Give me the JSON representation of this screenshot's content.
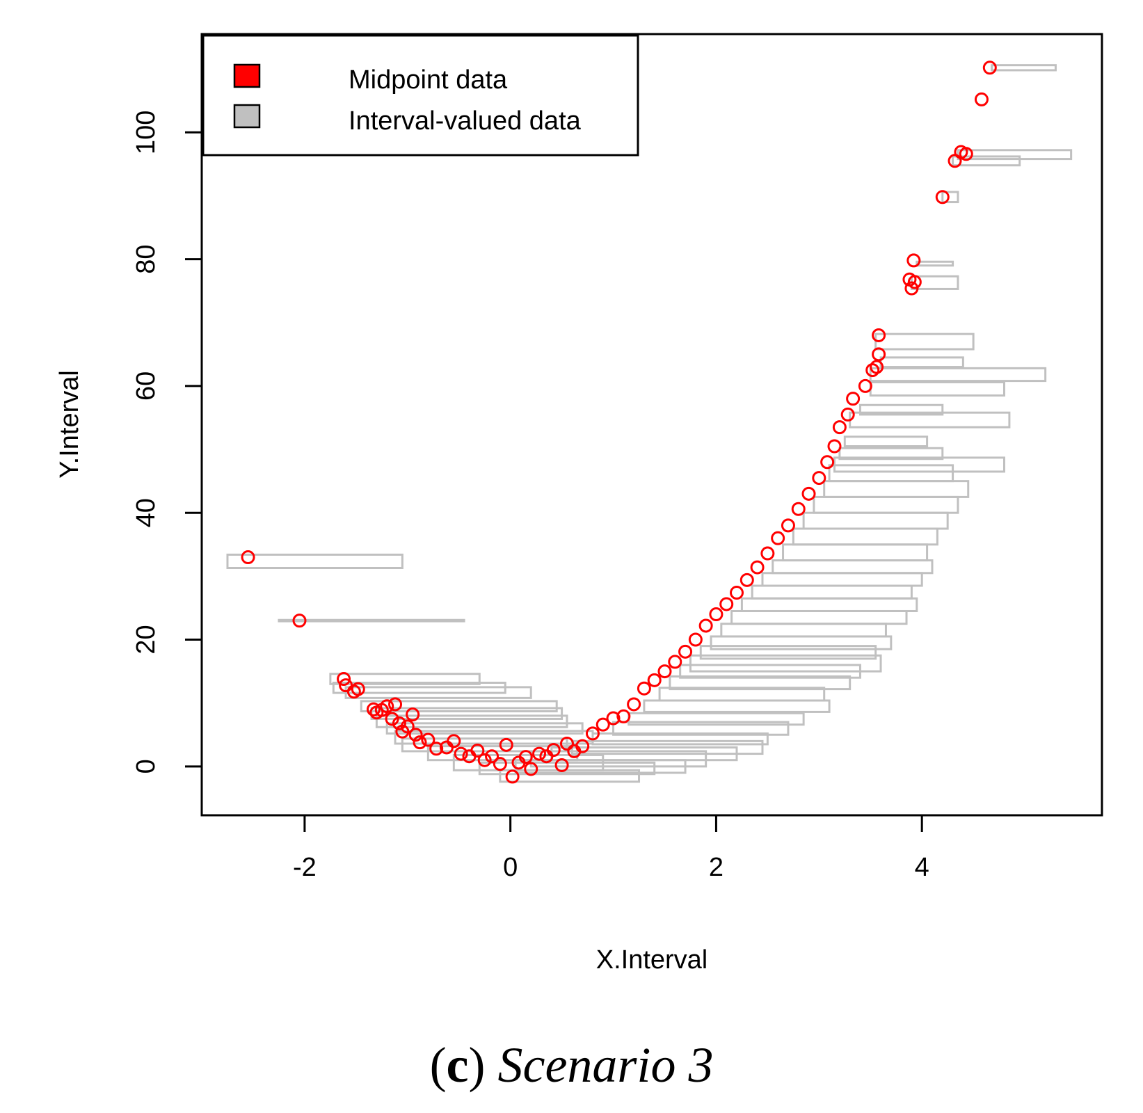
{
  "chart_data": {
    "type": "scatter",
    "title": "",
    "xlabel": "X.Interval",
    "ylabel": "Y.Interval",
    "xlim": [
      -3.0,
      5.75
    ],
    "ylim": [
      -7.7,
      115.5
    ],
    "x_ticks": [
      -2,
      0,
      2,
      4
    ],
    "y_ticks": [
      0,
      20,
      40,
      60,
      80,
      100
    ],
    "grid": false,
    "legend": {
      "position": "top-left",
      "entries": [
        {
          "label": "Midpoint data",
          "color": "#ff0000"
        },
        {
          "label": "Interval-valued data",
          "color": "#c0c0c0"
        }
      ]
    },
    "series": [
      {
        "name": "Midpoint data",
        "color": "#ff0000",
        "marker": "open-circle",
        "points": [
          [
            -2.55,
            33.0
          ],
          [
            -2.05,
            23.0
          ],
          [
            -1.62,
            13.8
          ],
          [
            -1.6,
            12.8
          ],
          [
            -1.52,
            11.8
          ],
          [
            -1.48,
            12.2
          ],
          [
            -1.33,
            9.0
          ],
          [
            -1.3,
            8.5
          ],
          [
            -1.25,
            8.9
          ],
          [
            -1.2,
            9.5
          ],
          [
            -1.15,
            7.5
          ],
          [
            -1.12,
            9.8
          ],
          [
            -1.08,
            6.8
          ],
          [
            -1.05,
            5.5
          ],
          [
            -1.0,
            6.3
          ],
          [
            -0.95,
            8.2
          ],
          [
            -0.92,
            5.0
          ],
          [
            -0.88,
            3.8
          ],
          [
            -0.8,
            4.2
          ],
          [
            -0.72,
            2.8
          ],
          [
            -0.62,
            3.0
          ],
          [
            -0.55,
            4.0
          ],
          [
            -0.48,
            2.0
          ],
          [
            -0.4,
            1.6
          ],
          [
            -0.32,
            2.5
          ],
          [
            -0.25,
            1.0
          ],
          [
            -0.18,
            1.6
          ],
          [
            -0.1,
            0.4
          ],
          [
            -0.04,
            3.4
          ],
          [
            0.02,
            -1.6
          ],
          [
            0.08,
            0.6
          ],
          [
            0.15,
            1.5
          ],
          [
            0.2,
            -0.4
          ],
          [
            0.28,
            2.0
          ],
          [
            0.35,
            1.6
          ],
          [
            0.42,
            2.6
          ],
          [
            0.5,
            0.2
          ],
          [
            0.55,
            3.6
          ],
          [
            0.62,
            2.4
          ],
          [
            0.7,
            3.2
          ],
          [
            0.8,
            5.2
          ],
          [
            0.9,
            6.6
          ],
          [
            1.0,
            7.6
          ],
          [
            1.1,
            7.9
          ],
          [
            1.2,
            9.8
          ],
          [
            1.3,
            12.3
          ],
          [
            1.4,
            13.6
          ],
          [
            1.5,
            15.0
          ],
          [
            1.6,
            16.5
          ],
          [
            1.7,
            18.1
          ],
          [
            1.8,
            20.0
          ],
          [
            1.9,
            22.2
          ],
          [
            2.0,
            24.0
          ],
          [
            2.1,
            25.6
          ],
          [
            2.2,
            27.4
          ],
          [
            2.3,
            29.4
          ],
          [
            2.4,
            31.4
          ],
          [
            2.5,
            33.6
          ],
          [
            2.6,
            36.0
          ],
          [
            2.7,
            38.0
          ],
          [
            2.8,
            40.6
          ],
          [
            2.9,
            43.0
          ],
          [
            3.0,
            45.5
          ],
          [
            3.08,
            48.0
          ],
          [
            3.15,
            50.5
          ],
          [
            3.2,
            53.5
          ],
          [
            3.28,
            55.5
          ],
          [
            3.33,
            58.0
          ],
          [
            3.45,
            60.0
          ],
          [
            3.52,
            62.5
          ],
          [
            3.56,
            63.0
          ],
          [
            3.58,
            65.0
          ],
          [
            3.58,
            68.0
          ],
          [
            3.88,
            76.8
          ],
          [
            3.9,
            75.4
          ],
          [
            3.92,
            79.8
          ],
          [
            3.93,
            76.4
          ],
          [
            4.2,
            89.8
          ],
          [
            4.32,
            95.5
          ],
          [
            4.38,
            96.9
          ],
          [
            4.43,
            96.6
          ],
          [
            4.58,
            105.2
          ],
          [
            4.66,
            110.2
          ]
        ]
      },
      {
        "name": "Interval-valued data",
        "color": "#c0c0c0",
        "marker": "rectangle",
        "intervals": [
          [
            -2.75,
            -1.05,
            31.3,
            33.4
          ],
          [
            -2.25,
            -0.45,
            22.9,
            23.1
          ],
          [
            -1.75,
            -0.3,
            13.0,
            14.6
          ],
          [
            -1.72,
            -0.05,
            11.6,
            13.2
          ],
          [
            -1.6,
            0.2,
            10.8,
            12.5
          ],
          [
            -1.45,
            0.45,
            8.7,
            10.3
          ],
          [
            -1.35,
            0.5,
            7.5,
            9.2
          ],
          [
            -1.3,
            0.55,
            6.2,
            8.0
          ],
          [
            -1.2,
            0.7,
            5.2,
            6.8
          ],
          [
            -1.12,
            0.8,
            3.6,
            5.6
          ],
          [
            -1.05,
            0.55,
            2.4,
            4.4
          ],
          [
            -0.8,
            0.65,
            1.0,
            3.2
          ],
          [
            -0.55,
            0.9,
            -0.6,
            1.8
          ],
          [
            -0.3,
            1.4,
            -1.2,
            0.6
          ],
          [
            -0.1,
            1.25,
            -2.4,
            -0.6
          ],
          [
            0.05,
            1.7,
            -1.0,
            1.0
          ],
          [
            0.2,
            1.9,
            0.0,
            2.4
          ],
          [
            0.4,
            2.2,
            1.0,
            3.0
          ],
          [
            0.6,
            2.45,
            2.0,
            4.0
          ],
          [
            0.8,
            2.5,
            3.5,
            5.2
          ],
          [
            1.0,
            2.7,
            5.0,
            7.0
          ],
          [
            1.15,
            2.85,
            6.6,
            8.4
          ],
          [
            1.3,
            3.1,
            8.6,
            10.4
          ],
          [
            1.45,
            3.05,
            10.4,
            12.4
          ],
          [
            1.55,
            3.3,
            12.2,
            14.2
          ],
          [
            1.65,
            3.4,
            14.0,
            16.0
          ],
          [
            1.75,
            3.6,
            15.0,
            17.5
          ],
          [
            1.85,
            3.55,
            17.0,
            19.0
          ],
          [
            1.95,
            3.7,
            18.5,
            20.5
          ],
          [
            2.05,
            3.65,
            20.5,
            22.5
          ],
          [
            2.15,
            3.85,
            22.5,
            24.5
          ],
          [
            2.25,
            3.95,
            24.5,
            26.5
          ],
          [
            2.35,
            3.9,
            26.5,
            28.5
          ],
          [
            2.45,
            4.0,
            28.5,
            30.5
          ],
          [
            2.55,
            4.1,
            30.5,
            32.5
          ],
          [
            2.65,
            4.05,
            32.5,
            35.0
          ],
          [
            2.75,
            4.15,
            35.0,
            37.5
          ],
          [
            2.85,
            4.25,
            37.5,
            40.0
          ],
          [
            2.95,
            4.35,
            40.0,
            42.5
          ],
          [
            3.05,
            4.45,
            42.5,
            45.0
          ],
          [
            3.1,
            4.3,
            45.0,
            47.5
          ],
          [
            3.15,
            4.8,
            46.5,
            48.7
          ],
          [
            3.2,
            4.2,
            48.5,
            50.2
          ],
          [
            3.25,
            4.05,
            50.5,
            52.0
          ],
          [
            3.3,
            4.85,
            53.5,
            55.8
          ],
          [
            3.4,
            4.2,
            55.5,
            57.0
          ],
          [
            3.5,
            4.8,
            58.5,
            60.6
          ],
          [
            3.5,
            5.2,
            60.8,
            62.8
          ],
          [
            3.6,
            4.4,
            63.0,
            64.5
          ],
          [
            3.55,
            4.5,
            65.8,
            68.2
          ],
          [
            3.9,
            4.35,
            75.3,
            77.3
          ],
          [
            3.95,
            4.3,
            79.0,
            79.6
          ],
          [
            4.2,
            4.35,
            89.0,
            90.6
          ],
          [
            4.3,
            4.95,
            94.8,
            96.2
          ],
          [
            4.35,
            5.45,
            95.8,
            97.2
          ],
          [
            4.68,
            5.3,
            109.8,
            110.6
          ]
        ]
      }
    ]
  },
  "caption": {
    "open_paren": "(",
    "letter": "c",
    "close_paren": ")",
    "title": "Scenario 3"
  }
}
